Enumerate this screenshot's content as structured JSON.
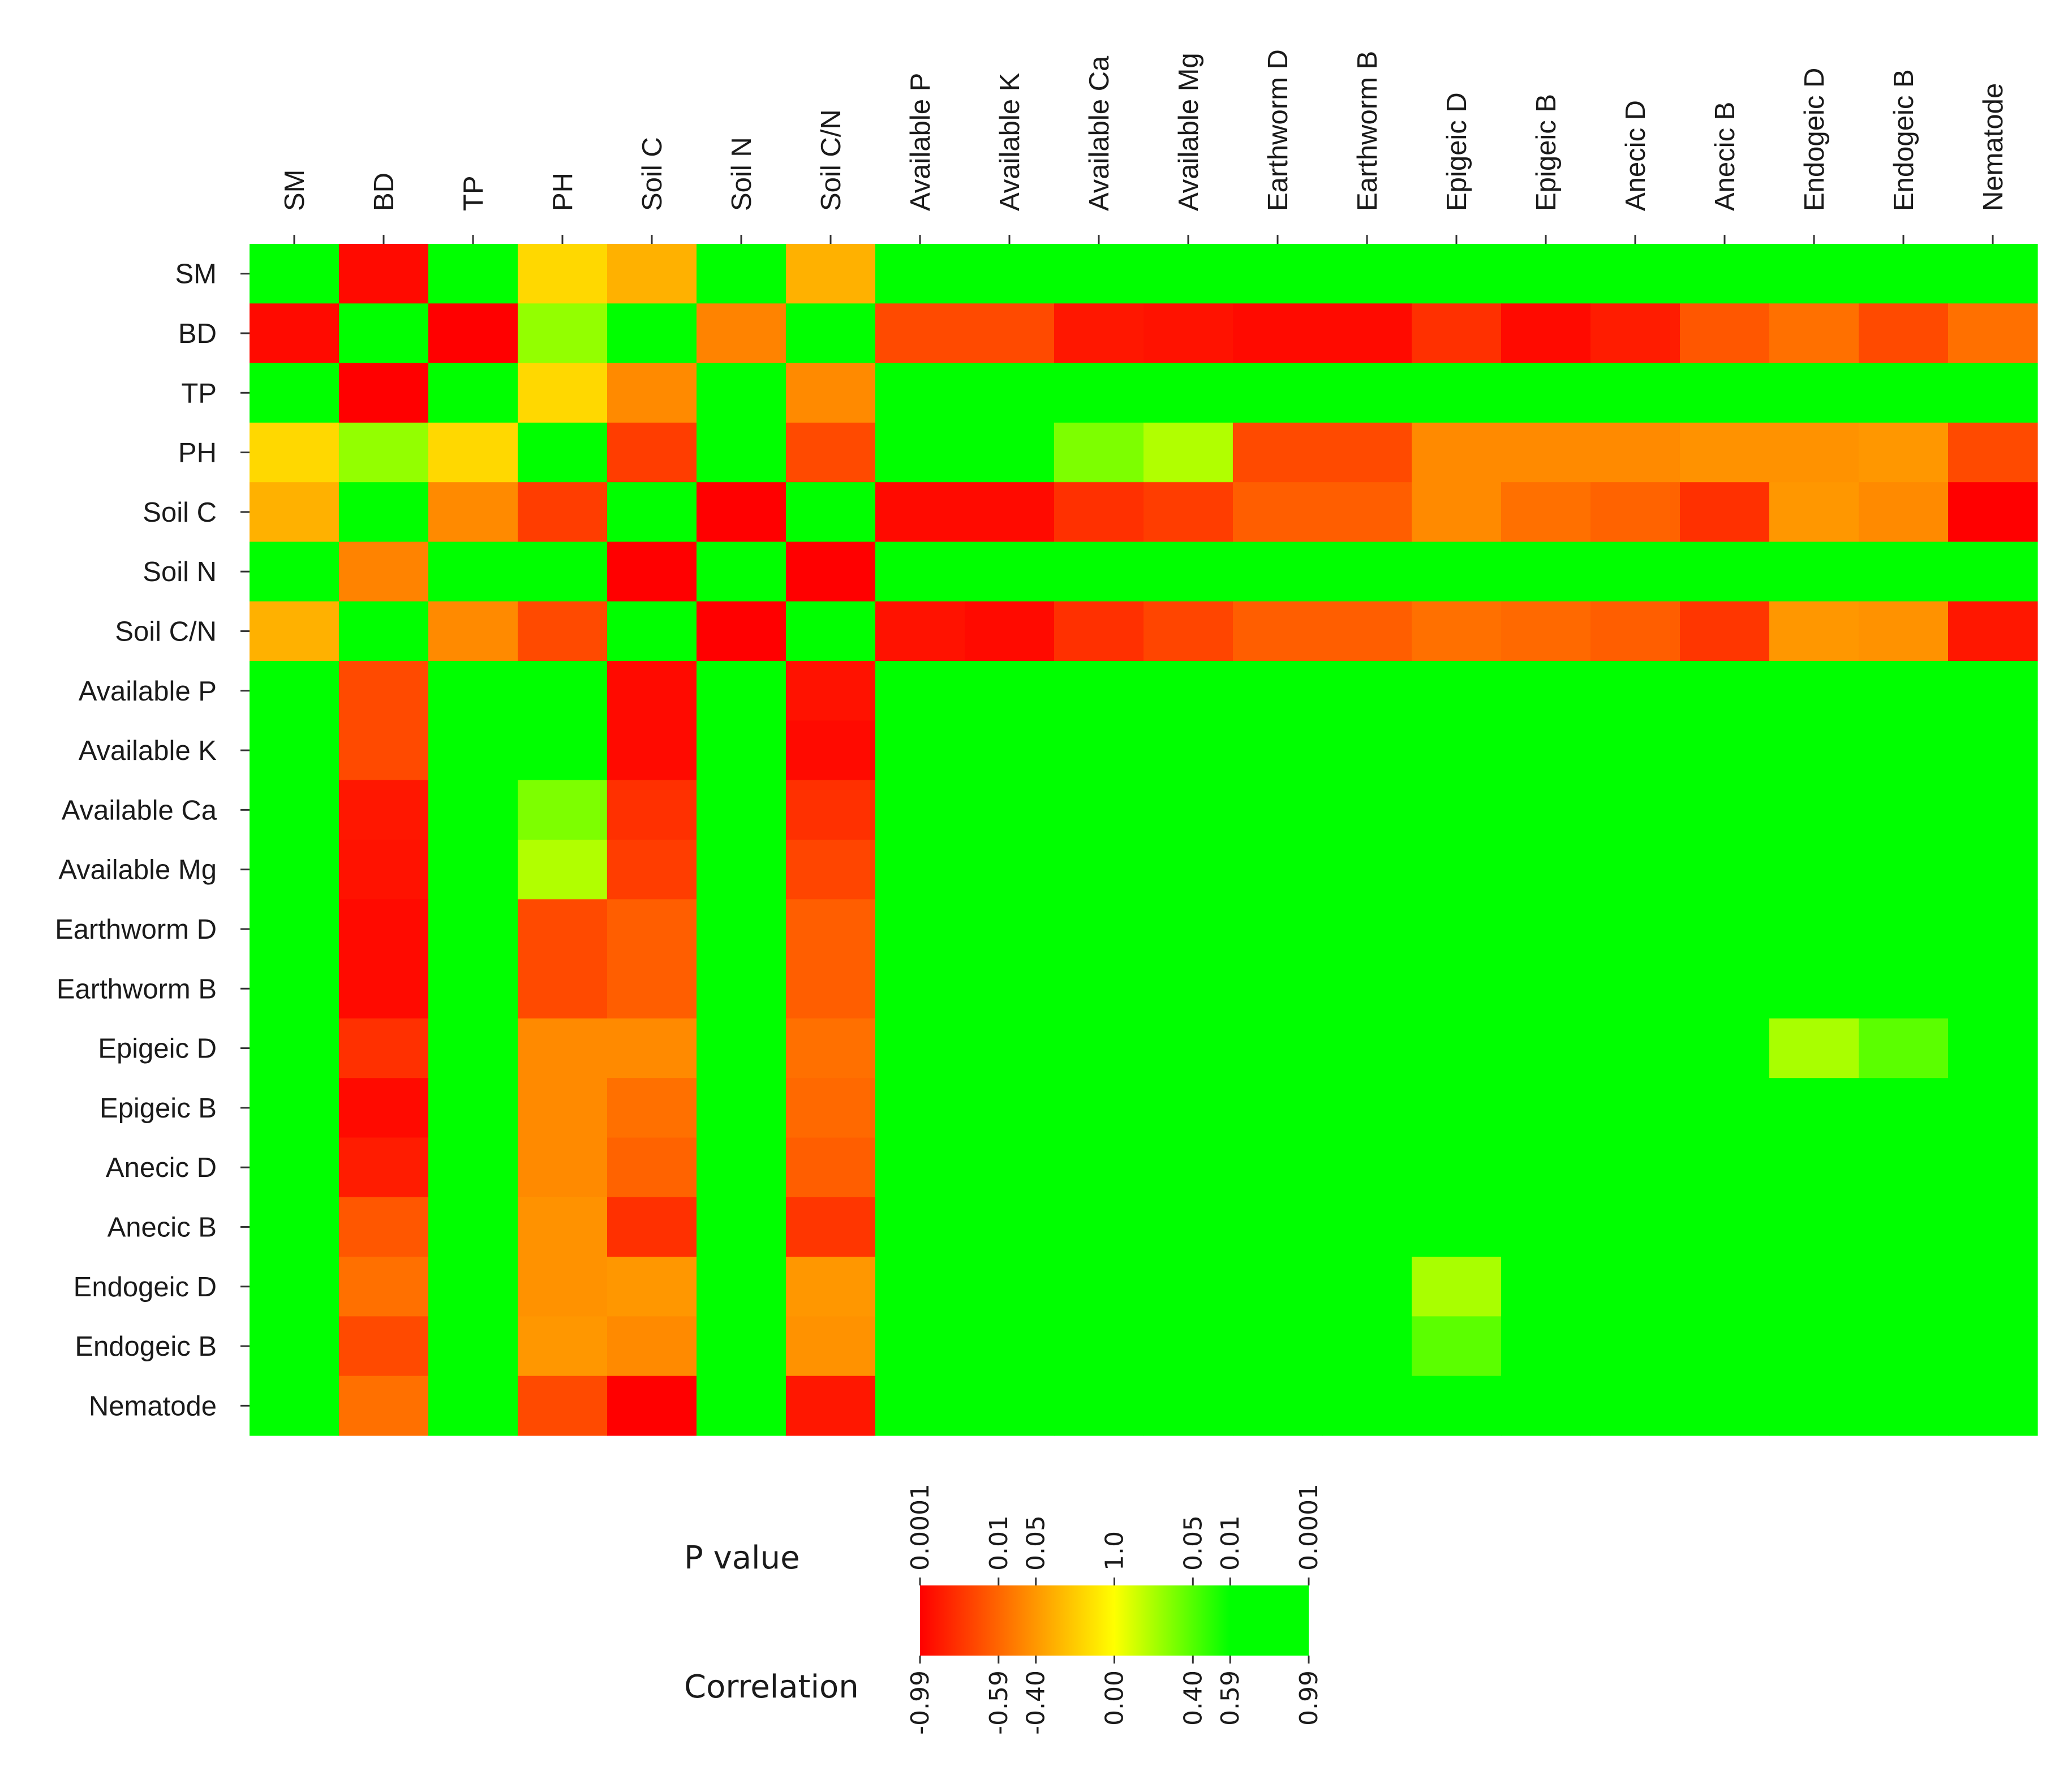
{
  "chart_data": {
    "type": "heatmap",
    "title": "",
    "variables": [
      "SM",
      "BD",
      "TP",
      "PH",
      "Soil C",
      "Soil N",
      "Soil C/N",
      "Available P",
      "Available K",
      "Available Ca",
      "Available Mg",
      "Earthworm D",
      "Earthworm B",
      "Epigeic D",
      "Epigeic B",
      "Anecic D",
      "Anecic B",
      "Endogeic D",
      "Endogeic B",
      "Nematode"
    ],
    "matrix": [
      [
        0.99,
        -0.95,
        0.99,
        -0.15,
        -0.3,
        0.75,
        -0.3,
        0.99,
        0.99,
        0.99,
        0.99,
        0.99,
        0.99,
        0.99,
        0.99,
        0.99,
        0.99,
        0.75,
        0.99,
        0.99
      ],
      [
        -0.95,
        0.99,
        -0.99,
        0.25,
        0.99,
        -0.48,
        0.99,
        -0.7,
        -0.7,
        -0.9,
        -0.92,
        -0.95,
        -0.95,
        -0.8,
        -0.95,
        -0.88,
        -0.65,
        -0.55,
        -0.7,
        -0.55
      ],
      [
        0.99,
        -0.99,
        0.99,
        -0.15,
        -0.45,
        0.99,
        -0.45,
        0.99,
        0.99,
        0.99,
        0.99,
        0.99,
        0.99,
        0.99,
        0.99,
        0.99,
        0.99,
        0.99,
        0.99,
        0.99
      ],
      [
        -0.15,
        0.25,
        -0.15,
        0.99,
        -0.75,
        0.99,
        -0.7,
        0.99,
        0.99,
        0.3,
        0.18,
        -0.7,
        -0.7,
        -0.45,
        -0.45,
        -0.45,
        -0.42,
        -0.42,
        -0.4,
        -0.7
      ],
      [
        -0.3,
        0.99,
        -0.45,
        -0.75,
        0.99,
        -0.99,
        0.99,
        -0.95,
        -0.95,
        -0.8,
        -0.75,
        -0.62,
        -0.62,
        -0.45,
        -0.55,
        -0.6,
        -0.8,
        -0.4,
        -0.45,
        -0.99
      ],
      [
        0.75,
        -0.48,
        0.99,
        0.99,
        -0.99,
        0.99,
        -0.99,
        0.99,
        0.99,
        0.99,
        0.99,
        0.99,
        0.99,
        0.99,
        0.99,
        0.99,
        0.99,
        0.99,
        0.99,
        0.99
      ],
      [
        -0.3,
        0.99,
        -0.45,
        -0.7,
        0.99,
        -0.99,
        0.99,
        -0.92,
        -0.95,
        -0.8,
        -0.72,
        -0.62,
        -0.62,
        -0.55,
        -0.58,
        -0.62,
        -0.78,
        -0.4,
        -0.42,
        -0.9
      ],
      [
        0.99,
        -0.7,
        0.99,
        0.99,
        -0.95,
        0.99,
        -0.92,
        0.99,
        0.99,
        0.99,
        0.99,
        0.99,
        0.99,
        0.99,
        0.99,
        0.99,
        0.99,
        0.99,
        0.99,
        0.99
      ],
      [
        0.99,
        -0.7,
        0.99,
        0.99,
        -0.95,
        0.99,
        -0.95,
        0.99,
        0.99,
        0.99,
        0.99,
        0.99,
        0.99,
        0.99,
        0.99,
        0.99,
        0.99,
        0.99,
        0.99,
        0.99
      ],
      [
        0.99,
        -0.9,
        0.99,
        0.3,
        -0.8,
        0.99,
        -0.8,
        0.99,
        0.99,
        0.99,
        0.99,
        0.99,
        0.99,
        0.99,
        0.99,
        0.99,
        0.99,
        0.99,
        0.99,
        0.99
      ],
      [
        0.99,
        -0.92,
        0.99,
        0.18,
        -0.75,
        0.99,
        -0.72,
        0.99,
        0.99,
        0.99,
        0.99,
        0.99,
        0.99,
        0.99,
        0.99,
        0.99,
        0.99,
        0.99,
        0.99,
        0.99
      ],
      [
        0.99,
        -0.95,
        0.99,
        -0.7,
        -0.62,
        0.99,
        -0.62,
        0.99,
        0.99,
        0.99,
        0.99,
        0.99,
        0.99,
        0.99,
        0.99,
        0.99,
        0.99,
        0.99,
        0.99,
        0.99
      ],
      [
        0.99,
        -0.95,
        0.99,
        -0.7,
        -0.62,
        0.99,
        -0.62,
        0.99,
        0.99,
        0.99,
        0.99,
        0.99,
        0.99,
        0.99,
        0.99,
        0.99,
        0.99,
        0.99,
        0.99,
        0.99
      ],
      [
        0.99,
        -0.8,
        0.99,
        -0.45,
        -0.45,
        0.99,
        -0.55,
        0.99,
        0.99,
        0.99,
        0.99,
        0.99,
        0.99,
        0.99,
        0.99,
        0.99,
        0.99,
        0.2,
        0.38,
        0.99
      ],
      [
        0.99,
        -0.95,
        0.99,
        -0.45,
        -0.55,
        0.99,
        -0.58,
        0.99,
        0.99,
        0.99,
        0.99,
        0.99,
        0.99,
        0.99,
        0.99,
        0.99,
        0.99,
        0.99,
        0.99,
        0.99
      ],
      [
        0.99,
        -0.88,
        0.99,
        -0.45,
        -0.6,
        0.99,
        -0.62,
        0.99,
        0.99,
        0.99,
        0.99,
        0.99,
        0.99,
        0.99,
        0.99,
        0.99,
        0.99,
        0.99,
        0.99,
        0.99
      ],
      [
        0.99,
        -0.65,
        0.99,
        -0.42,
        -0.8,
        0.99,
        -0.78,
        0.99,
        0.99,
        0.99,
        0.99,
        0.99,
        0.99,
        0.99,
        0.99,
        0.99,
        0.99,
        0.99,
        0.99,
        0.99
      ],
      [
        0.75,
        -0.55,
        0.99,
        -0.42,
        -0.4,
        0.99,
        -0.4,
        0.99,
        0.99,
        0.99,
        0.99,
        0.99,
        0.99,
        0.2,
        0.99,
        0.99,
        0.99,
        0.99,
        0.99,
        0.99
      ],
      [
        0.99,
        -0.7,
        0.99,
        -0.4,
        -0.45,
        0.99,
        -0.42,
        0.99,
        0.99,
        0.99,
        0.99,
        0.99,
        0.99,
        0.38,
        0.99,
        0.99,
        0.99,
        0.99,
        0.99,
        0.99
      ],
      [
        0.99,
        -0.55,
        0.99,
        -0.7,
        -0.99,
        0.99,
        -0.9,
        0.99,
        0.99,
        0.99,
        0.99,
        0.99,
        0.99,
        0.99,
        0.99,
        0.99,
        0.99,
        0.99,
        0.99,
        0.99
      ]
    ],
    "legend": {
      "title_top": "P value",
      "title_bottom": "Correlation",
      "p_labels": [
        "0.0001",
        "0.01",
        "0.05",
        "1.0",
        "0.05",
        "0.01",
        "0.0001"
      ],
      "correlation_labels": [
        "-0.99",
        "-0.59",
        "-0.40",
        "0.00",
        "0.40",
        "0.59",
        "0.99"
      ],
      "correlation_values": [
        -0.99,
        -0.59,
        -0.4,
        0.0,
        0.4,
        0.59,
        0.99
      ]
    },
    "colors": {
      "negative": "#ff0000",
      "neutral": "#ffff00",
      "positive": "#00ff00",
      "mid_negative": "#ff6600"
    }
  }
}
